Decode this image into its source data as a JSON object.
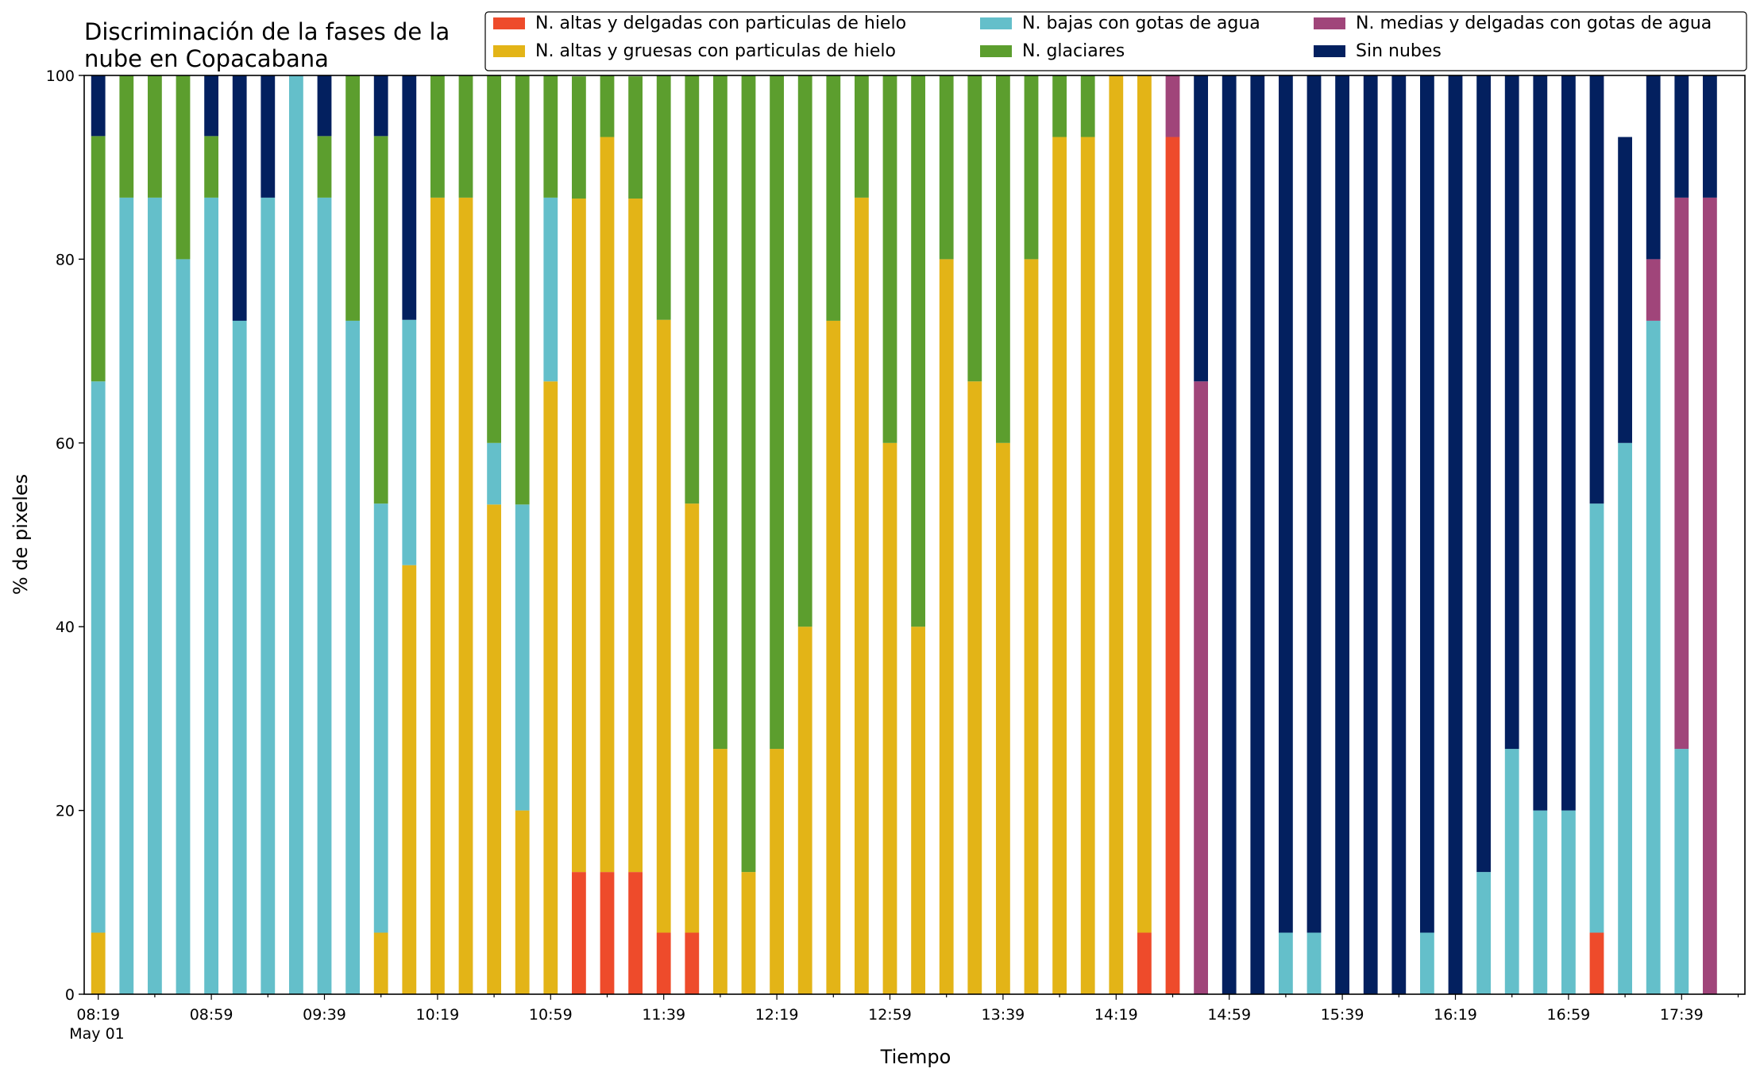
{
  "chart_data": {
    "type": "bar",
    "stacked": true,
    "title_lines": [
      "Discriminación de la fases de la",
      "nube en Copacabana"
    ],
    "xlabel": "Tiempo",
    "ylabel": "% de pixeles",
    "ylim": [
      0,
      100
    ],
    "yticks": [
      0,
      20,
      40,
      60,
      80,
      100
    ],
    "grid": false,
    "legend_position": "top-right",
    "xtick_labels": [
      "08:19",
      "08:59",
      "09:39",
      "10:19",
      "10:59",
      "11:39",
      "12:19",
      "12:59",
      "13:39",
      "14:19",
      "14:59",
      "15:39",
      "16:19",
      "16:59",
      "17:39"
    ],
    "xtick_sub_label": "May 01",
    "categories": [
      "08:19",
      "08:29",
      "08:39",
      "08:49",
      "08:59",
      "09:09",
      "09:19",
      "09:29",
      "09:39",
      "09:49",
      "09:59",
      "10:09",
      "10:19",
      "10:29",
      "10:39",
      "10:49",
      "10:59",
      "11:09",
      "11:19",
      "11:29",
      "11:39",
      "11:49",
      "11:59",
      "12:09",
      "12:19",
      "12:29",
      "12:39",
      "12:49",
      "12:59",
      "13:09",
      "13:19",
      "13:29",
      "13:39",
      "13:49",
      "13:59",
      "14:09",
      "14:19",
      "14:29",
      "14:39",
      "14:49",
      "14:59",
      "15:09",
      "15:19",
      "15:29",
      "15:39",
      "15:49",
      "15:59",
      "16:09",
      "16:19",
      "16:29",
      "16:39",
      "16:49",
      "16:59",
      "17:09",
      "17:19",
      "17:29",
      "17:39",
      "17:49"
    ],
    "series": [
      {
        "name": "N. altas y delgadas con particulas de hielo",
        "color": "#ee4b2b",
        "values": [
          0,
          0,
          0,
          0,
          0,
          0,
          0,
          0,
          0,
          0,
          0,
          0,
          0,
          0,
          0,
          0,
          0,
          13.3,
          13.3,
          13.3,
          6.7,
          6.7,
          0,
          0,
          0,
          0,
          0,
          0,
          0,
          0,
          0,
          0,
          0,
          0,
          0,
          0,
          0,
          6.7,
          93.3,
          0,
          0,
          0,
          0,
          0,
          0,
          0,
          0,
          0,
          0,
          0,
          0,
          0,
          0,
          6.7,
          0,
          0,
          0,
          0
        ]
      },
      {
        "name": "N. altas y gruesas con particulas de hielo",
        "color": "#e3b417",
        "values": [
          6.7,
          0,
          0,
          0,
          0,
          0,
          0,
          0,
          0,
          0,
          6.7,
          46.7,
          86.7,
          86.7,
          53.3,
          20,
          66.7,
          73.3,
          80,
          73.3,
          66.7,
          46.7,
          26.7,
          13.3,
          26.7,
          40,
          73.3,
          86.7,
          60,
          40,
          80,
          66.7,
          60,
          80,
          93.3,
          93.3,
          100,
          93.3,
          0,
          0,
          0,
          0,
          0,
          0,
          0,
          0,
          0,
          0,
          0,
          0,
          0,
          0,
          0,
          0,
          0,
          0,
          0,
          0
        ]
      },
      {
        "name": "N. bajas con gotas de agua",
        "color": "#64bfca",
        "values": [
          60,
          86.7,
          86.7,
          80,
          86.7,
          73.3,
          86.7,
          100,
          86.7,
          73.3,
          46.7,
          26.7,
          0,
          0,
          6.7,
          33.3,
          20,
          0,
          0,
          0,
          0,
          0,
          0,
          0,
          0,
          0,
          0,
          0,
          0,
          0,
          0,
          0,
          0,
          0,
          0,
          0,
          0,
          0,
          0,
          0,
          0,
          0,
          6.7,
          6.7,
          0,
          0,
          0,
          6.7,
          0,
          13.3,
          26.7,
          20,
          20,
          46.7,
          60,
          73.3,
          26.7,
          0
        ]
      },
      {
        "name": "N. glaciares",
        "color": "#5c9e2e",
        "values": [
          26.7,
          13.3,
          13.3,
          20,
          6.7,
          0,
          0,
          0,
          6.7,
          26.7,
          40,
          0,
          13.3,
          13.3,
          40,
          46.7,
          13.3,
          13.3,
          6.7,
          13.3,
          26.7,
          46.7,
          73.3,
          86.7,
          73.3,
          60,
          26.7,
          13.3,
          40,
          60,
          20,
          33.3,
          40,
          20,
          6.7,
          6.7,
          0,
          0,
          0,
          0,
          0,
          0,
          0,
          0,
          0,
          0,
          0,
          0,
          0,
          0,
          0,
          0,
          0,
          0,
          0,
          0,
          0,
          0
        ]
      },
      {
        "name": "N. medias y delgadas con gotas de agua",
        "color": "#a0457a",
        "values": [
          0,
          0,
          0,
          0,
          0,
          0,
          0,
          0,
          0,
          0,
          0,
          0,
          0,
          0,
          0,
          0,
          0,
          0,
          0,
          0,
          0,
          0,
          0,
          0,
          0,
          0,
          0,
          0,
          0,
          0,
          0,
          0,
          0,
          0,
          0,
          0,
          0,
          0,
          6.7,
          66.7,
          0,
          0,
          0,
          0,
          0,
          0,
          0,
          0,
          0,
          0,
          0,
          0,
          0,
          0,
          0,
          6.7,
          60,
          86.7
        ]
      },
      {
        "name": "Sin nubes",
        "color": "#03205f",
        "values": [
          6.6,
          0,
          0,
          0,
          6.6,
          26.7,
          13.3,
          0,
          6.6,
          0,
          6.6,
          26.6,
          0,
          0,
          0,
          0,
          0,
          0,
          0,
          0,
          0,
          0,
          0,
          0,
          0,
          0,
          0,
          0,
          0,
          0,
          0,
          0,
          0,
          0,
          0,
          0,
          0,
          0,
          0,
          33.3,
          100,
          100,
          93.3,
          93.3,
          100,
          100,
          100,
          93.3,
          100,
          86.7,
          73.3,
          80,
          80,
          53.3,
          33.3,
          20,
          13.3,
          13.3
        ]
      }
    ]
  }
}
